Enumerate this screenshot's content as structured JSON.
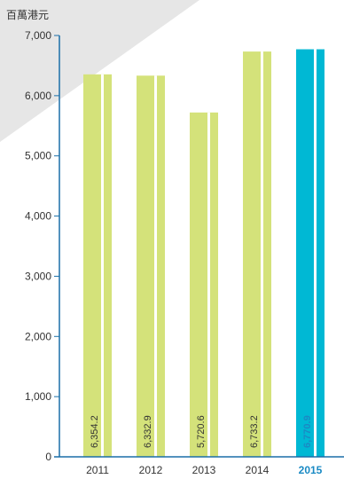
{
  "chart_data": {
    "type": "bar",
    "ylabel": "百萬港元",
    "categories": [
      "2011",
      "2012",
      "2013",
      "2014",
      "2015"
    ],
    "values": [
      6354.2,
      6332.9,
      5720.6,
      6733.2,
      6770.9
    ],
    "value_labels": [
      "6,354.2",
      "6,332.9",
      "5,720.6",
      "6,733.2",
      "6,770.9"
    ],
    "highlight_index": 4,
    "ylim": [
      0,
      7000
    ],
    "yticks": [
      0,
      1000,
      2000,
      3000,
      4000,
      5000,
      6000,
      7000
    ],
    "ytick_labels": [
      "0",
      "1,000",
      "2,000",
      "3,000",
      "4,000",
      "5,000",
      "6,000",
      "7,000"
    ],
    "grid": false,
    "colors": {
      "bar": "#d4e27a",
      "bar_highlight": "#00b8d4",
      "axis": "#1a6fa8",
      "highlight_text": "#1a8ac4",
      "background_shape": "#e6e6e6"
    }
  }
}
